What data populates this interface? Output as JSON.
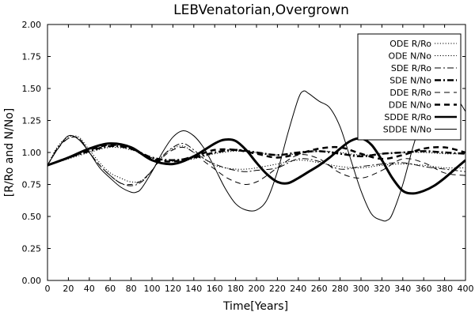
{
  "chart_data": {
    "type": "line",
    "title": "LEBVenatorian,Overgrown",
    "xlabel": "Time[Years]",
    "ylabel": "[R/Ro and N/No]",
    "xlim": [
      0,
      400
    ],
    "ylim": [
      0.0,
      2.0
    ],
    "xticks": [
      "0",
      "20",
      "40",
      "60",
      "80",
      "100",
      "120",
      "140",
      "160",
      "180",
      "200",
      "220",
      "240",
      "260",
      "280",
      "300",
      "320",
      "340",
      "360",
      "380",
      "400"
    ],
    "yticks": [
      "0.00",
      "0.25",
      "0.50",
      "0.75",
      "1.00",
      "1.25",
      "1.50",
      "1.75",
      "2.00"
    ],
    "legend_position": "top-right",
    "grid": false,
    "series": [
      {
        "name": "ODE R/Ro",
        "style": "dotted",
        "width": 1,
        "x": [
          0,
          10,
          20,
          30,
          40,
          50,
          60,
          70,
          80,
          90,
          100,
          110,
          120,
          130,
          140,
          150,
          160,
          170,
          180,
          190,
          200,
          220,
          240,
          260,
          280,
          300,
          320,
          340,
          360,
          380,
          400
        ],
        "y": [
          0.9,
          1.05,
          1.12,
          1.12,
          1.02,
          0.92,
          0.84,
          0.8,
          0.77,
          0.78,
          0.86,
          0.97,
          1.03,
          1.05,
          1.0,
          0.95,
          0.9,
          0.88,
          0.87,
          0.87,
          0.88,
          0.91,
          0.94,
          0.92,
          0.89,
          0.88,
          0.9,
          0.91,
          0.9,
          0.88,
          0.88
        ]
      },
      {
        "name": "ODE N/No",
        "style": "dotted",
        "width": 1,
        "x": [
          0,
          20,
          40,
          60,
          80,
          100,
          120,
          140,
          160,
          180,
          200,
          220,
          240,
          260,
          280,
          300,
          320,
          340,
          360,
          380,
          400
        ],
        "y": [
          0.9,
          0.95,
          1.0,
          1.04,
          1.02,
          0.96,
          0.93,
          0.95,
          0.99,
          1.01,
          1.0,
          0.98,
          0.99,
          1.01,
          1.0,
          0.98,
          0.99,
          1.0,
          1.0,
          0.99,
          0.99
        ]
      },
      {
        "name": "SDE R/Ro",
        "style": "dashdot",
        "width": 1,
        "x": [
          0,
          10,
          20,
          30,
          40,
          50,
          60,
          70,
          80,
          90,
          100,
          110,
          120,
          130,
          140,
          150,
          160,
          170,
          180,
          190,
          200,
          220,
          240,
          260,
          280,
          300,
          320,
          340,
          360,
          380,
          400
        ],
        "y": [
          0.9,
          1.04,
          1.11,
          1.11,
          1.0,
          0.9,
          0.82,
          0.76,
          0.74,
          0.77,
          0.86,
          0.97,
          1.04,
          1.07,
          1.02,
          0.95,
          0.91,
          0.88,
          0.86,
          0.85,
          0.86,
          0.88,
          0.95,
          0.93,
          0.87,
          0.89,
          0.91,
          0.92,
          0.89,
          0.87,
          0.85
        ]
      },
      {
        "name": "SDE N/No",
        "style": "dashdot",
        "width": 2.5,
        "x": [
          0,
          20,
          40,
          60,
          80,
          100,
          120,
          140,
          160,
          180,
          200,
          220,
          240,
          260,
          280,
          300,
          320,
          340,
          360,
          380,
          400
        ],
        "y": [
          0.9,
          0.96,
          1.01,
          1.05,
          1.03,
          0.96,
          0.94,
          0.96,
          1.0,
          1.02,
          1.0,
          0.98,
          1.0,
          1.01,
          0.99,
          0.97,
          0.99,
          1.0,
          1.01,
          1.0,
          0.99
        ]
      },
      {
        "name": "DDE R/Ro",
        "style": "dashed",
        "width": 1,
        "x": [
          0,
          10,
          20,
          30,
          40,
          50,
          60,
          70,
          80,
          90,
          100,
          110,
          120,
          130,
          140,
          150,
          160,
          170,
          180,
          190,
          200,
          210,
          220,
          240,
          260,
          280,
          300,
          320,
          340,
          360,
          380,
          400
        ],
        "y": [
          0.9,
          1.03,
          1.11,
          1.11,
          1.0,
          0.9,
          0.82,
          0.76,
          0.75,
          0.78,
          0.86,
          0.96,
          1.02,
          1.04,
          1.0,
          0.93,
          0.87,
          0.81,
          0.77,
          0.75,
          0.77,
          0.82,
          0.88,
          0.98,
          0.95,
          0.84,
          0.8,
          0.86,
          0.95,
          0.92,
          0.84,
          0.82
        ]
      },
      {
        "name": "DDE N/No",
        "style": "dashed",
        "width": 2.5,
        "x": [
          0,
          20,
          40,
          60,
          80,
          100,
          120,
          140,
          160,
          180,
          200,
          220,
          240,
          260,
          280,
          300,
          320,
          340,
          360,
          380,
          400
        ],
        "y": [
          0.9,
          0.96,
          1.02,
          1.06,
          1.03,
          0.95,
          0.93,
          0.97,
          1.02,
          1.02,
          0.99,
          0.96,
          0.99,
          1.03,
          1.04,
          0.99,
          0.95,
          0.98,
          1.03,
          1.04,
          1.0
        ]
      },
      {
        "name": "SDDE R/Ro",
        "style": "solid",
        "width": 3,
        "x": [
          0,
          20,
          40,
          60,
          80,
          100,
          120,
          140,
          160,
          170,
          180,
          190,
          200,
          210,
          220,
          230,
          240,
          250,
          260,
          270,
          280,
          290,
          300,
          310,
          320,
          330,
          340,
          350,
          360,
          370,
          380,
          390,
          400
        ],
        "y": [
          0.9,
          0.96,
          1.03,
          1.07,
          1.04,
          0.94,
          0.91,
          0.97,
          1.07,
          1.1,
          1.09,
          1.02,
          0.92,
          0.83,
          0.77,
          0.76,
          0.8,
          0.85,
          0.9,
          0.96,
          1.03,
          1.09,
          1.11,
          1.06,
          0.94,
          0.8,
          0.7,
          0.68,
          0.7,
          0.74,
          0.8,
          0.87,
          0.94
        ]
      },
      {
        "name": "SDDE N/No",
        "style": "solid",
        "width": 1,
        "x": [
          0,
          10,
          20,
          30,
          40,
          50,
          60,
          70,
          80,
          85,
          90,
          100,
          110,
          120,
          130,
          140,
          150,
          160,
          170,
          180,
          190,
          200,
          210,
          220,
          230,
          240,
          245,
          250,
          260,
          270,
          280,
          290,
          300,
          310,
          320,
          325,
          330,
          340,
          350,
          360,
          370,
          380,
          390,
          400
        ],
        "y": [
          0.9,
          1.03,
          1.13,
          1.1,
          1.0,
          0.88,
          0.8,
          0.73,
          0.69,
          0.69,
          0.72,
          0.85,
          1.0,
          1.12,
          1.17,
          1.13,
          1.03,
          0.88,
          0.72,
          0.6,
          0.55,
          0.55,
          0.63,
          0.85,
          1.15,
          1.42,
          1.48,
          1.46,
          1.4,
          1.35,
          1.2,
          0.95,
          0.7,
          0.52,
          0.47,
          0.47,
          0.52,
          0.75,
          1.05,
          1.3,
          1.48,
          1.56,
          1.45,
          1.32
        ]
      }
    ]
  }
}
